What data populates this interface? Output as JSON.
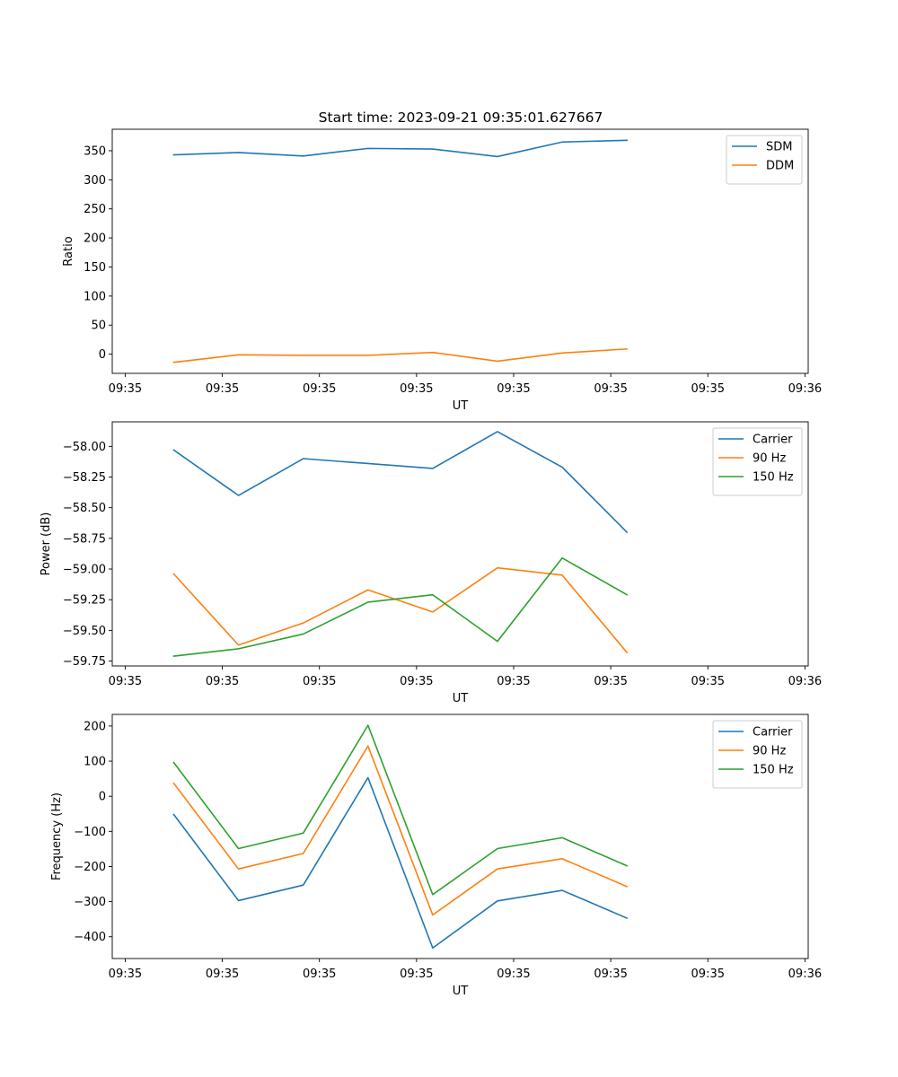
{
  "title": "Start time: 2023-09-21 09:35:01.627667",
  "chart_data": [
    {
      "type": "line",
      "xlabel": "UT",
      "ylabel": "Ratio",
      "x_tick_labels": [
        "09:35",
        "09:35",
        "09:35",
        "09:35",
        "09:35",
        "09:35",
        "09:35",
        "09:36"
      ],
      "x_tick_values": [
        -0.75,
        0.75,
        2.25,
        3.75,
        5.25,
        6.75,
        8.25,
        9.75
      ],
      "xlim": [
        -0.95,
        9.8
      ],
      "ylim": [
        -33,
        387
      ],
      "y_ticks": [
        0,
        50,
        100,
        150,
        200,
        250,
        300,
        350
      ],
      "y_tick_labels": [
        "0",
        "50",
        "100",
        "150",
        "200",
        "250",
        "300",
        "350"
      ],
      "legend_position": "top-right",
      "x": [
        0,
        1,
        2,
        3,
        4,
        5,
        6,
        7
      ],
      "series": [
        {
          "name": "SDM",
          "color": "#1f77b4",
          "values": [
            343,
            347,
            341,
            354,
            353,
            340,
            365,
            368
          ]
        },
        {
          "name": "DDM",
          "color": "#ff7f0e",
          "values": [
            -14,
            -1,
            -2,
            -2,
            3,
            -12,
            2,
            9
          ]
        }
      ]
    },
    {
      "type": "line",
      "xlabel": "UT",
      "ylabel": "Power (dB)",
      "x_tick_labels": [
        "09:35",
        "09:35",
        "09:35",
        "09:35",
        "09:35",
        "09:35",
        "09:35",
        "09:36"
      ],
      "x_tick_values": [
        -0.75,
        0.75,
        2.25,
        3.75,
        5.25,
        6.75,
        8.25,
        9.75
      ],
      "xlim": [
        -0.95,
        9.8
      ],
      "ylim": [
        -59.79,
        -57.8
      ],
      "y_ticks": [
        -59.75,
        -59.5,
        -59.25,
        -59.0,
        -58.75,
        -58.5,
        -58.25,
        -58.0
      ],
      "y_tick_labels": [
        "−59.75",
        "−59.50",
        "−59.25",
        "−59.00",
        "−58.75",
        "−58.50",
        "−58.25",
        "−58.00"
      ],
      "legend_position": "top-right",
      "x": [
        0,
        1,
        2,
        3,
        4,
        5,
        6,
        7
      ],
      "series": [
        {
          "name": "Carrier",
          "color": "#1f77b4",
          "values": [
            -58.03,
            -58.4,
            -58.1,
            -58.14,
            -58.18,
            -57.88,
            -58.17,
            -58.7
          ]
        },
        {
          "name": "90 Hz",
          "color": "#ff7f0e",
          "values": [
            -59.04,
            -59.62,
            -59.44,
            -59.17,
            -59.35,
            -58.99,
            -59.05,
            -59.68
          ]
        },
        {
          "name": "150 Hz",
          "color": "#2ca02c",
          "values": [
            -59.71,
            -59.65,
            -59.53,
            -59.27,
            -59.21,
            -59.59,
            -58.91,
            -59.21
          ]
        }
      ]
    },
    {
      "type": "line",
      "xlabel": "UT",
      "ylabel": "Frequency (Hz)",
      "x_tick_labels": [
        "09:35",
        "09:35",
        "09:35",
        "09:35",
        "09:35",
        "09:35",
        "09:35",
        "09:36"
      ],
      "x_tick_values": [
        -0.75,
        0.75,
        2.25,
        3.75,
        5.25,
        6.75,
        8.25,
        9.75
      ],
      "xlim": [
        -0.95,
        9.8
      ],
      "ylim": [
        -462,
        233
      ],
      "y_ticks": [
        -400,
        -300,
        -200,
        -100,
        0,
        100,
        200
      ],
      "y_tick_labels": [
        "−400",
        "−300",
        "−200",
        "−100",
        "0",
        "100",
        "200"
      ],
      "legend_position": "top-right",
      "x": [
        0,
        1,
        2,
        3,
        4,
        5,
        6,
        7
      ],
      "series": [
        {
          "name": "Carrier",
          "color": "#1f77b4",
          "values": [
            -52,
            -297,
            -253,
            53,
            -432,
            -298,
            -268,
            -347
          ]
        },
        {
          "name": "90 Hz",
          "color": "#ff7f0e",
          "values": [
            37,
            -207,
            -163,
            143,
            -338,
            -207,
            -178,
            -257
          ]
        },
        {
          "name": "150 Hz",
          "color": "#2ca02c",
          "values": [
            96,
            -149,
            -105,
            202,
            -280,
            -149,
            -118,
            -198
          ]
        }
      ]
    }
  ]
}
